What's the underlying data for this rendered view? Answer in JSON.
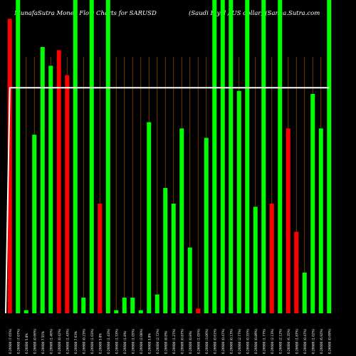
{
  "header": {
    "left": "MunafaSutra  Money Flow  Charts for SARUSD",
    "right": "(Saudi  Riyal / US dollar)  (Sanaa.Sutra.com"
  },
  "chart_data": {
    "type": "bar",
    "ylim": [
      0,
      100
    ],
    "grid": "vertical dark orange lines",
    "colors": {
      "up": "#00ff00",
      "down": "#ff0000",
      "line": "#ffffff",
      "grid": "#8a4a00"
    },
    "categories": [
      "0.26600 (7.65%)",
      "0.26600 (7.07%)",
      "0.26600 5.8%",
      "0.26600 (0.66%)",
      "0.26600 7.55%",
      "0.26600 (1.46%)",
      "0.26600 (0.42%)",
      "0.26600 (1.43%)",
      "0.26600 7.63%",
      "0.26600 (0.23%)",
      "0.26600 (1.03%)",
      "0.26600 3.8%",
      "0.26600 (1.43%)",
      "0.26600 (1.53%)",
      "0.26600 (1.8%)",
      "0.26600 (1.05%)",
      "0.26600 (2.08%)",
      "0.26600 3.8%",
      "0.26600 (2.72%)",
      "0.26600 (8.8%)",
      "0.26600 (1.27%)",
      "0.26600 (0.87%)",
      "0.26600 (0.8%)",
      "0.26600 (1.05%)",
      "0.26600 (3.06%)",
      "0.26600 (0.61%)",
      "0.26600 (0.47%)",
      "0.26600 (0.13%)",
      "0.26600 (2.77%)",
      "0.26600 (0.55%)",
      "0.26600 (0.89%)",
      "0.26600 (1.77%)",
      "0.26600 (2.13%)",
      "0.26600 (2.12%)",
      "0.26600 (6.35%)",
      "0.26600 (1.87%)",
      "0.26600 (0.47%)",
      "0.26600 (1.02%)",
      "0.26600 (6.92%)",
      "0.26600 (0.69%)"
    ],
    "values": [
      94,
      100,
      1,
      57,
      85,
      79,
      84,
      76,
      100,
      5,
      100,
      35,
      100,
      1,
      5,
      5,
      1,
      61,
      6,
      40,
      35,
      59,
      21,
      1.5,
      56,
      100,
      100,
      100,
      71,
      100,
      34,
      100,
      35,
      100,
      59,
      26,
      13,
      70,
      59,
      100
    ],
    "directions": [
      "down",
      "up",
      "up",
      "up",
      "up",
      "up",
      "down",
      "down",
      "up",
      "up",
      "up",
      "down",
      "up",
      "up",
      "up",
      "up",
      "up",
      "up",
      "up",
      "up",
      "up",
      "up",
      "up",
      "down",
      "up",
      "up",
      "up",
      "up",
      "up",
      "up",
      "up",
      "up",
      "down",
      "up",
      "down",
      "down",
      "up",
      "up",
      "up",
      "up"
    ],
    "line_values": [
      72,
      72,
      72,
      72,
      72,
      72,
      72,
      72,
      72,
      72,
      72,
      72,
      72,
      72,
      72,
      72,
      72,
      72,
      72,
      72,
      72,
      72,
      72,
      72,
      72,
      72,
      72,
      72,
      72,
      72,
      72,
      72,
      72,
      72,
      72,
      72,
      72,
      72,
      72,
      72
    ],
    "line_start": 0
  }
}
